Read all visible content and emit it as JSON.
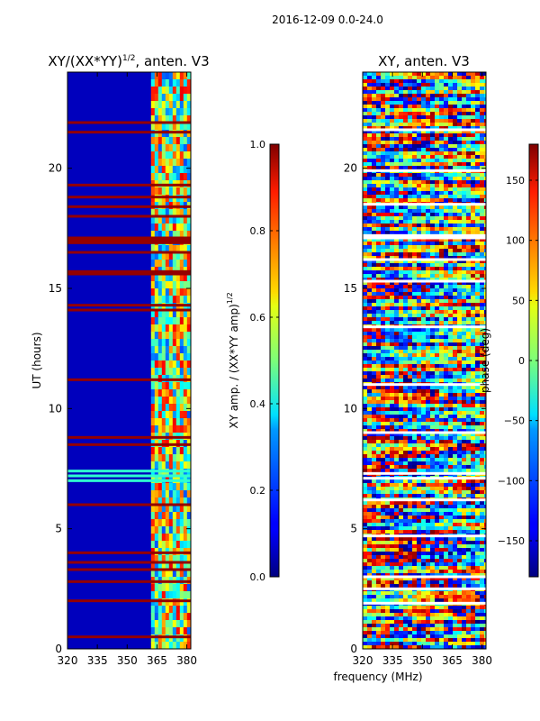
{
  "figure_title": "2016-12-09 0.0-24.0",
  "chart_data": [
    {
      "type": "heatmap",
      "panel": "left",
      "title_main": "XY/(XX*YY)",
      "title_sup": "1/2",
      "title_rest": ", anten. V3",
      "xlabel": "",
      "ylabel": "UT (hours)",
      "xlim": [
        320,
        382
      ],
      "ylim": [
        0,
        24
      ],
      "xticks": [
        320,
        335,
        350,
        365,
        380
      ],
      "yticks": [
        0,
        5,
        10,
        15,
        20
      ],
      "xtick_labels": [
        "320",
        "335",
        "350",
        "365",
        "380"
      ],
      "ytick_labels": [
        "0",
        "5",
        "10",
        "15",
        "20"
      ],
      "colorbar": {
        "label_main": "XY amp. / (XX*YY amp)",
        "label_sup": "1/2",
        "range": [
          0.0,
          1.0
        ],
        "ticks": [
          0.0,
          0.2,
          0.4,
          0.6,
          0.8,
          1.0
        ],
        "tick_labels": [
          "0.0",
          "0.2",
          "0.4",
          "0.6",
          "0.8",
          "1.0"
        ],
        "colormap": "jet"
      },
      "active_band_mhz": [
        362,
        382
      ],
      "background_value": 0.06,
      "band_value": 0.55,
      "flagged_rows_ut": [
        0.5,
        2.0,
        2.8,
        3.3,
        3.6,
        4.0,
        6.0,
        8.5,
        8.8,
        11.2,
        14.1,
        14.3,
        15.6,
        15.7,
        16.5,
        16.9,
        17.0,
        17.1,
        18.0,
        18.4,
        18.8,
        19.3,
        21.5,
        21.9
      ],
      "bright_rows_ut": [
        7.0,
        7.2,
        7.4
      ]
    },
    {
      "type": "heatmap",
      "panel": "right",
      "title": "XY, anten. V3",
      "xlabel": "frequency (MHz)",
      "ylabel": "",
      "xlim": [
        320,
        382
      ],
      "ylim": [
        0,
        24
      ],
      "xticks": [
        320,
        335,
        350,
        365,
        380
      ],
      "yticks": [
        0,
        5,
        10,
        15,
        20
      ],
      "xtick_labels": [
        "320",
        "335",
        "350",
        "365",
        "380"
      ],
      "ytick_labels": [
        "0",
        "5",
        "10",
        "15",
        "20"
      ],
      "colorbar": {
        "label": "phase (deg)",
        "range": [
          -180,
          180
        ],
        "ticks": [
          -150,
          -100,
          -50,
          0,
          50,
          100,
          150
        ],
        "tick_labels": [
          "−150",
          "−100",
          "−50",
          "0",
          "50",
          "100",
          "150"
        ],
        "colormap": "jet"
      },
      "blank_rows_ut": [
        1.9,
        2.5,
        3.0,
        4.7,
        6.2,
        7.1,
        7.3,
        9.0,
        11.0,
        13.4,
        15.3,
        16.2,
        17.1,
        17.2,
        18.5,
        19.9,
        21.6
      ]
    }
  ]
}
